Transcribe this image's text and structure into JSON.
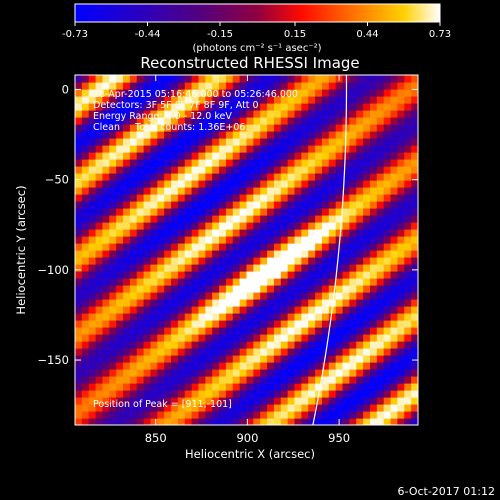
{
  "colorbar": {
    "ticks": [
      "-0.73",
      "-0.44",
      "-0.15",
      "0.15",
      "0.44",
      "0.73"
    ],
    "range": [
      -0.73,
      0.73
    ],
    "unit_label": "(photons cm⁻² s⁻¹ asec⁻²)"
  },
  "chart_data": {
    "type": "heatmap",
    "title": "Reconstructed RHESSI Image",
    "xlabel": "Heliocentric X (arcsec)",
    "ylabel": "Heliocentric Y (arcsec)",
    "xlim": [
      806,
      993
    ],
    "ylim": [
      -186,
      8
    ],
    "xticks": [
      850,
      900,
      950
    ],
    "yticks": [
      0,
      -50,
      -100,
      -150
    ],
    "value_range": [
      -0.73,
      0.73
    ],
    "peak": [
      911,
      -101
    ],
    "annotations": [
      "28-Apr-2015 05:16:46.000 to 05:26:46.000",
      "Detectors: 3F 5F 6F 7F 8F 9F, Att 0",
      "Energy Range: 6.0 - 12.0 keV",
      "Clean     Total counts: 1.36E+06"
    ],
    "peak_label": "Position of Peak = [911,-101]"
  },
  "colors": {
    "limb": "#ffffff",
    "colormap": [
      "#0000ff",
      "#3a00a0",
      "#600070",
      "#a00030",
      "#ff1000",
      "#ff8000",
      "#ffd000",
      "#ffffff"
    ]
  },
  "footer": {
    "date": "6-Oct-2017 01:12"
  }
}
